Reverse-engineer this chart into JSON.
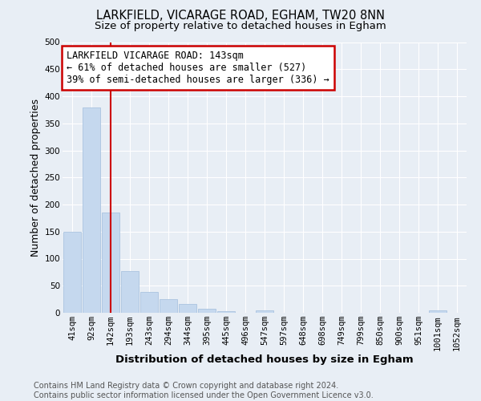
{
  "title1": "LARKFIELD, VICARAGE ROAD, EGHAM, TW20 8NN",
  "title2": "Size of property relative to detached houses in Egham",
  "xlabel": "Distribution of detached houses by size in Egham",
  "ylabel": "Number of detached properties",
  "categories": [
    "41sqm",
    "92sqm",
    "142sqm",
    "193sqm",
    "243sqm",
    "294sqm",
    "344sqm",
    "395sqm",
    "445sqm",
    "496sqm",
    "547sqm",
    "597sqm",
    "648sqm",
    "698sqm",
    "749sqm",
    "799sqm",
    "850sqm",
    "900sqm",
    "951sqm",
    "1001sqm",
    "1052sqm"
  ],
  "values": [
    150,
    380,
    185,
    77,
    38,
    25,
    16,
    7,
    3,
    0,
    5,
    0,
    0,
    0,
    0,
    0,
    0,
    0,
    0,
    5,
    0
  ],
  "bar_color": "#c5d8ee",
  "bar_edge_color": "#aac4e0",
  "vline_x": 2,
  "vline_color": "#cc0000",
  "annotation_text": "LARKFIELD VICARAGE ROAD: 143sqm\n← 61% of detached houses are smaller (527)\n39% of semi-detached houses are larger (336) →",
  "annotation_box_color": "#ffffff",
  "annotation_box_edge_color": "#cc0000",
  "ylim": [
    0,
    500
  ],
  "yticks": [
    0,
    50,
    100,
    150,
    200,
    250,
    300,
    350,
    400,
    450,
    500
  ],
  "footer": "Contains HM Land Registry data © Crown copyright and database right 2024.\nContains public sector information licensed under the Open Government Licence v3.0.",
  "background_color": "#e8eef5",
  "grid_color": "#ffffff",
  "title_fontsize": 10.5,
  "subtitle_fontsize": 9.5,
  "axis_label_fontsize": 9,
  "tick_fontsize": 7.5,
  "footer_fontsize": 7,
  "annotation_fontsize": 8.5
}
